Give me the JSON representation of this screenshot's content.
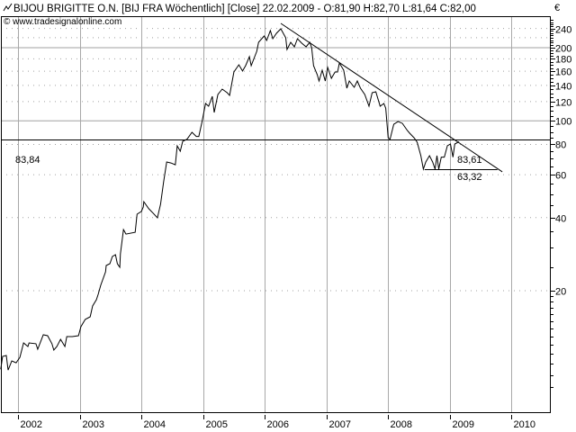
{
  "header": {
    "title": "BIJOU BRIGITTE O.N. [BIJ FRA  Wöchentlich] [Close] 22.02.2009 - O:81,90 H:82,70 L:81,64 C:82,00",
    "copyright": "© www.tradesignalonline.com",
    "chart_icon": "line-chart-icon"
  },
  "chart_data": {
    "type": "line",
    "title": "BIJOU BRIGITTE O.N. [BIJ FRA  Wöchentlich] [Close] 22.02.2009 - O:81,90 H:82,70 L:81,64 C:82,00",
    "currency_label": "€",
    "y_scale": "log",
    "ylim": [
      6.4,
      270
    ],
    "xlim": [
      2001.7,
      2010.6
    ],
    "grid": true,
    "x_ticks": [
      "2002",
      "2003",
      "2004",
      "2005",
      "2006",
      "2007",
      "2008",
      "2009",
      "2010"
    ],
    "y_ticks": [
      "240",
      "200",
      "180",
      "160",
      "140",
      "120",
      "100",
      "80",
      "60",
      "40",
      "20"
    ],
    "series": [
      {
        "color": "#000000",
        "points": [
          [
            2001.72,
            9.5
          ],
          [
            2001.75,
            10.73
          ],
          [
            2001.81,
            10.82
          ],
          [
            2001.84,
            9.43
          ],
          [
            2001.9,
            10.28
          ],
          [
            2001.97,
            10.1
          ],
          [
            2002.03,
            10.64
          ],
          [
            2002.09,
            12.2
          ],
          [
            2002.16,
            11.79
          ],
          [
            2002.18,
            12.2
          ],
          [
            2002.29,
            12.1
          ],
          [
            2002.32,
            11.49
          ],
          [
            2002.41,
            13.17
          ],
          [
            2002.48,
            13.06
          ],
          [
            2002.55,
            12.1
          ],
          [
            2002.58,
            11.39
          ],
          [
            2002.63,
            11.79
          ],
          [
            2002.69,
            12.62
          ],
          [
            2002.76,
            11.79
          ],
          [
            2002.79,
            12.95
          ],
          [
            2002.88,
            12.95
          ],
          [
            2002.98,
            13.06
          ],
          [
            2003.02,
            14.22
          ],
          [
            2003.09,
            15.23
          ],
          [
            2003.17,
            15.62
          ],
          [
            2003.21,
            17.3
          ],
          [
            2003.27,
            18.37
          ],
          [
            2003.3,
            19.33
          ],
          [
            2003.34,
            21.05
          ],
          [
            2003.42,
            23.92
          ],
          [
            2003.43,
            25.4
          ],
          [
            2003.49,
            25.84
          ],
          [
            2003.53,
            27.65
          ],
          [
            2003.58,
            28.13
          ],
          [
            2003.61,
            25.84
          ],
          [
            2003.65,
            24.97
          ],
          [
            2003.66,
            28.37
          ],
          [
            2003.71,
            35.7
          ],
          [
            2003.75,
            34.2
          ],
          [
            2003.9,
            34.8
          ],
          [
            2003.93,
            41.3
          ],
          [
            2004.0,
            42.4
          ],
          [
            2004.03,
            44.2
          ],
          [
            2004.04,
            46.5
          ],
          [
            2004.12,
            43.5
          ],
          [
            2004.19,
            41.7
          ],
          [
            2004.26,
            39.9
          ],
          [
            2004.31,
            45.4
          ],
          [
            2004.36,
            56.1
          ],
          [
            2004.41,
            67.7
          ],
          [
            2004.48,
            67.1
          ],
          [
            2004.55,
            65.95
          ],
          [
            2004.58,
            78.9
          ],
          [
            2004.63,
            75.0
          ],
          [
            2004.67,
            82.4
          ],
          [
            2004.74,
            84.0
          ],
          [
            2004.82,
            89.7
          ],
          [
            2004.89,
            86.3
          ],
          [
            2004.93,
            86.3
          ],
          [
            2004.98,
            98.5
          ],
          [
            2005.04,
            117.9
          ],
          [
            2005.09,
            114.9
          ],
          [
            2005.15,
            126.2
          ],
          [
            2005.18,
            108.2
          ],
          [
            2005.24,
            128.4
          ],
          [
            2005.31,
            135.1
          ],
          [
            2005.39,
            130.6
          ],
          [
            2005.43,
            127.3
          ],
          [
            2005.5,
            158.9
          ],
          [
            2005.58,
            170.1
          ],
          [
            2005.64,
            160.3
          ],
          [
            2005.69,
            168.7
          ],
          [
            2005.75,
            183.7
          ],
          [
            2005.78,
            168.7
          ],
          [
            2005.87,
            193.3
          ],
          [
            2005.9,
            210.5
          ],
          [
            2005.99,
            223.4
          ],
          [
            2006.03,
            214.1
          ],
          [
            2006.09,
            235.2
          ],
          [
            2006.13,
            217.8
          ],
          [
            2006.19,
            229.3
          ],
          [
            2006.26,
            239.2
          ],
          [
            2006.34,
            219.6
          ],
          [
            2006.36,
            196.6
          ],
          [
            2006.42,
            210.5
          ],
          [
            2006.48,
            201.7
          ],
          [
            2006.53,
            217.8
          ],
          [
            2006.6,
            208.7
          ],
          [
            2006.67,
            201.7
          ],
          [
            2006.73,
            210.5
          ],
          [
            2006.76,
            200
          ],
          [
            2006.79,
            168.7
          ],
          [
            2006.85,
            154.9
          ],
          [
            2006.88,
            145.9
          ],
          [
            2006.93,
            161.6
          ],
          [
            2006.98,
            145.9
          ],
          [
            2007.02,
            165.8
          ],
          [
            2007.08,
            149.7
          ],
          [
            2007.14,
            158.9
          ],
          [
            2007.18,
            158.9
          ],
          [
            2007.21,
            173.0
          ],
          [
            2007.28,
            161.6
          ],
          [
            2007.33,
            136.3
          ],
          [
            2007.37,
            145.9
          ],
          [
            2007.45,
            137.4
          ],
          [
            2007.5,
            145.9
          ],
          [
            2007.55,
            136.3
          ],
          [
            2007.62,
            128.4
          ],
          [
            2007.69,
            114.9
          ],
          [
            2007.74,
            130.6
          ],
          [
            2007.8,
            131.7
          ],
          [
            2007.87,
            114.9
          ],
          [
            2007.93,
            117.9
          ],
          [
            2007.96,
            112.8
          ],
          [
            2008.0,
            85.2
          ],
          [
            2008.03,
            84.0
          ],
          [
            2008.09,
            96.8
          ],
          [
            2008.16,
            99.3
          ],
          [
            2008.23,
            97.6
          ],
          [
            2008.31,
            91.3
          ],
          [
            2008.35,
            88.9
          ],
          [
            2008.42,
            85.2
          ],
          [
            2008.47,
            81.7
          ],
          [
            2008.53,
            71.9
          ],
          [
            2008.57,
            63.3
          ],
          [
            2008.61,
            67.7
          ],
          [
            2008.67,
            71.9
          ],
          [
            2008.72,
            67.7
          ],
          [
            2008.76,
            63.3
          ],
          [
            2008.79,
            71.9
          ],
          [
            2008.82,
            63.3
          ],
          [
            2008.86,
            70.9
          ],
          [
            2008.91,
            70.9
          ],
          [
            2008.96,
            79.0
          ],
          [
            2009.01,
            80.3
          ],
          [
            2009.05,
            70.9
          ],
          [
            2009.08,
            80.3
          ],
          [
            2009.15,
            82.0
          ]
        ]
      }
    ],
    "annotations": {
      "resistance_line": {
        "value": 83.84,
        "label": "83,84"
      },
      "support_line": {
        "value": 63.32,
        "label": "63,32",
        "from": 2008.59,
        "to": 2009.77
      },
      "trend_line": {
        "from": [
          2006.26,
          251.8
        ],
        "to": [
          2009.85,
          61.7
        ]
      },
      "trend_intersection": {
        "label": "83,61"
      }
    }
  }
}
